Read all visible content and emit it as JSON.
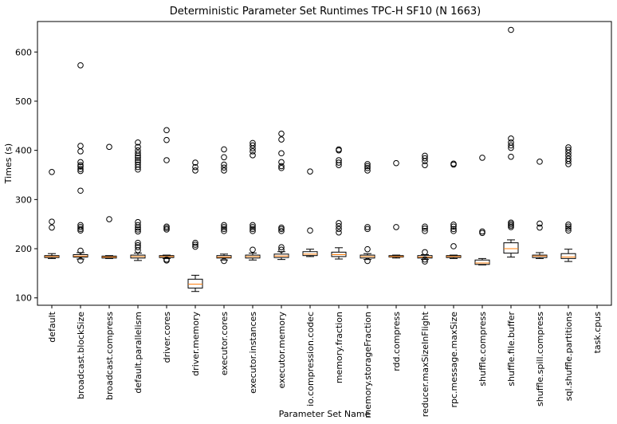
{
  "chart_data": {
    "type": "box",
    "title": "Deterministic Parameter Set Runtimes TPC-H SF10 (N 1663)",
    "xlabel": "Parameter Set Name",
    "ylabel": "Times (s)",
    "ylim": [
      85,
      662
    ],
    "yticks": [
      100,
      200,
      300,
      400,
      500,
      600
    ],
    "grid": false,
    "colors": {
      "box": "#000000",
      "median": "#ff7f0e",
      "axis": "#000000",
      "background": "#ffffff"
    },
    "categories": [
      "default",
      "broadcast.blockSize",
      "broadcast.compress",
      "default.parallelism",
      "driver.cores",
      "driver.memory",
      "executor.cores",
      "executor.instances",
      "executor.memory",
      "io.compression.codec",
      "memory.fraction",
      "memory.storageFraction",
      "rdd.compress",
      "reducer.maxSizeInFlight",
      "rpc.message.maxSize",
      "shuffle.compress",
      "shuffle.file.buffer",
      "shuffle.spill.compress",
      "sql.shuffle.partitions",
      "task.cpus"
    ],
    "boxes": [
      {
        "whislo": 180,
        "q1": 182,
        "med": 184,
        "q3": 186,
        "whishi": 190,
        "fliers": [
          243,
          255,
          356
        ]
      },
      {
        "whislo": 179,
        "q1": 183,
        "med": 185,
        "q3": 188,
        "whishi": 192,
        "fliers": [
          176,
          196,
          237,
          240,
          244,
          248,
          318,
          358,
          362,
          367,
          370,
          376,
          398,
          409,
          573
        ]
      },
      {
        "whislo": 180,
        "q1": 181,
        "med": 183,
        "q3": 185,
        "whishi": 186,
        "fliers": [
          260,
          407
        ]
      },
      {
        "whislo": 176,
        "q1": 181,
        "med": 184,
        "q3": 187,
        "whishi": 191,
        "fliers": [
          197,
          203,
          207,
          212,
          235,
          239,
          243,
          248,
          254,
          361,
          366,
          371,
          376,
          380,
          385,
          389,
          394,
          400,
          407,
          416
        ]
      },
      {
        "whislo": 180,
        "q1": 182,
        "med": 184,
        "q3": 186,
        "whishi": 187,
        "fliers": [
          176,
          178,
          239,
          242,
          245,
          380,
          421,
          441
        ]
      },
      {
        "whislo": 113,
        "q1": 120,
        "med": 128,
        "q3": 138,
        "whishi": 146,
        "fliers": [
          204,
          208,
          212,
          359,
          366,
          375
        ]
      },
      {
        "whislo": 177,
        "q1": 181,
        "med": 183,
        "q3": 186,
        "whishi": 189,
        "fliers": [
          175,
          236,
          240,
          244,
          248,
          359,
          365,
          371,
          386,
          402
        ]
      },
      {
        "whislo": 177,
        "q1": 181,
        "med": 184,
        "q3": 187,
        "whishi": 191,
        "fliers": [
          198,
          236,
          240,
          244,
          248,
          390,
          398,
          404,
          410,
          415
        ]
      },
      {
        "whislo": 178,
        "q1": 182,
        "med": 185,
        "q3": 189,
        "whishi": 194,
        "fliers": [
          198,
          203,
          236,
          240,
          243,
          364,
          368,
          376,
          394,
          422,
          434
        ]
      },
      {
        "whislo": 184,
        "q1": 186,
        "med": 189,
        "q3": 194,
        "whishi": 199,
        "fliers": [
          237,
          357
        ]
      },
      {
        "whislo": 179,
        "q1": 184,
        "med": 188,
        "q3": 193,
        "whishi": 202,
        "fliers": [
          233,
          240,
          246,
          252,
          370,
          375,
          380,
          400,
          402
        ]
      },
      {
        "whislo": 178,
        "q1": 181,
        "med": 184,
        "q3": 187,
        "whishi": 190,
        "fliers": [
          175,
          199,
          240,
          244,
          359,
          364,
          368,
          372
        ]
      },
      {
        "whislo": 181,
        "q1": 183,
        "med": 184,
        "q3": 186,
        "whishi": 187,
        "fliers": [
          244,
          374
        ]
      },
      {
        "whislo": 178,
        "q1": 181,
        "med": 183,
        "q3": 186,
        "whishi": 188,
        "fliers": [
          174,
          178,
          193,
          236,
          241,
          245,
          370,
          378,
          384,
          389
        ]
      },
      {
        "whislo": 180,
        "q1": 182,
        "med": 184,
        "q3": 186,
        "whishi": 187,
        "fliers": [
          205,
          236,
          240,
          245,
          249,
          371,
          373
        ]
      },
      {
        "whislo": 167,
        "q1": 168,
        "med": 171,
        "q3": 177,
        "whishi": 180,
        "fliers": [
          232,
          235,
          385
        ]
      },
      {
        "whislo": 183,
        "q1": 191,
        "med": 200,
        "q3": 212,
        "whishi": 218,
        "fliers": [
          244,
          247,
          250,
          253,
          387,
          405,
          410,
          416,
          424,
          645
        ]
      },
      {
        "whislo": 180,
        "q1": 182,
        "med": 185,
        "q3": 187,
        "whishi": 192,
        "fliers": [
          243,
          251,
          377
        ]
      },
      {
        "whislo": 174,
        "q1": 180,
        "med": 183,
        "q3": 190,
        "whishi": 199,
        "fliers": [
          237,
          241,
          245,
          249,
          372,
          378,
          383,
          389,
          395,
          401,
          406
        ]
      },
      null
    ]
  }
}
